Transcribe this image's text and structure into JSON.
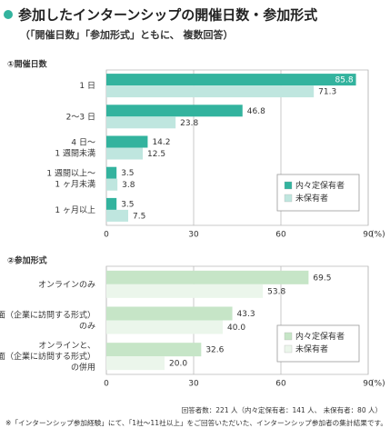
{
  "header": {
    "title": "参加したインターンシップの開催日数・参加形式",
    "subtitle": "（「開催日数」「参加形式」ともに、 複数回答）"
  },
  "chart_data": [
    {
      "type": "bar",
      "orientation": "horizontal",
      "label": "①開催日数",
      "categories": [
        "1 日",
        "2〜3 日",
        "4 日〜\n1 週間未満",
        "1 週間以上〜\n1 ヶ月未満",
        "1 ヶ月以上"
      ],
      "series": [
        {
          "name": "内々定保有者",
          "color": "#33b39e",
          "values": [
            85.8,
            46.8,
            14.2,
            3.5,
            3.5
          ]
        },
        {
          "name": "未保有者",
          "color": "#bfe6df",
          "values": [
            71.3,
            23.8,
            12.5,
            3.8,
            7.5
          ]
        }
      ],
      "xlim": [
        0,
        90
      ],
      "xticks": [
        0,
        30,
        60,
        90
      ],
      "x_label": "(%)",
      "grid": true,
      "legend": "lower right"
    },
    {
      "type": "bar",
      "orientation": "horizontal",
      "label": "②参加形式",
      "categories": [
        "オンラインのみ",
        "対面（企業に訪問する形式）\nのみ",
        "オンラインと、\n対面（企業に訪問する形式）\nの併用"
      ],
      "series": [
        {
          "name": "内々定保有者",
          "color": "#c6e5c7",
          "values": [
            69.5,
            43.3,
            32.6
          ]
        },
        {
          "name": "未保有者",
          "color": "#ebf6eb",
          "values": [
            53.8,
            40,
            20
          ],
          "value_labels": [
            "53.8",
            "40.0",
            "20.0"
          ]
        }
      ],
      "xlim": [
        0,
        90
      ],
      "xticks": [
        0,
        30,
        60,
        90
      ],
      "x_label": "(%)",
      "grid": true,
      "legend": "lower right"
    }
  ],
  "footer": {
    "respondents": "回答者数：221 人（内々定保有者：141 人、 未保有者：80 人）",
    "note": "※「インターンシップ参加経験」にて、「1社〜11社以上」をご回答いただいた、インターンシップ参加者の集計結果です。"
  }
}
